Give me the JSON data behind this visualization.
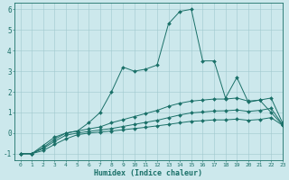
{
  "xlabel": "Humidex (Indice chaleur)",
  "bg_color": "#cce8ec",
  "grid_color": "#a0c8ce",
  "line_color": "#1a7068",
  "xlim": [
    -0.5,
    23
  ],
  "ylim": [
    -1.3,
    6.3
  ],
  "xtick_labels": [
    "0",
    "1",
    "2",
    "3",
    "4",
    "5",
    "6",
    "7",
    "8",
    "9",
    "10",
    "11",
    "12",
    "13",
    "14",
    "15",
    "16",
    "17",
    "18",
    "19",
    "20",
    "21",
    "22",
    "23"
  ],
  "xtick_pos": [
    0,
    1,
    2,
    3,
    4,
    5,
    6,
    7,
    8,
    9,
    10,
    11,
    12,
    13,
    14,
    15,
    16,
    17,
    18,
    19,
    20,
    21,
    22,
    23
  ],
  "yticks": [
    -1,
    0,
    1,
    2,
    3,
    4,
    5,
    6
  ],
  "series": [
    {
      "x": [
        0,
        1,
        2,
        3,
        4,
        5,
        6,
        7,
        8,
        9,
        10,
        11,
        12,
        13,
        14,
        15,
        16,
        17,
        18,
        19,
        20,
        21,
        22,
        23
      ],
      "y": [
        -1,
        -1,
        -0.7,
        -0.3,
        0.0,
        0.1,
        0.5,
        1.0,
        2.0,
        3.2,
        3.0,
        3.1,
        3.3,
        5.3,
        5.9,
        6.0,
        3.5,
        3.5,
        1.7,
        2.7,
        1.5,
        1.6,
        1.0,
        0.4
      ]
    },
    {
      "x": [
        0,
        1,
        2,
        3,
        4,
        5,
        6,
        7,
        8,
        9,
        10,
        11,
        12,
        13,
        14,
        15,
        16,
        17,
        18,
        19,
        20,
        21,
        22,
        23
      ],
      "y": [
        -1,
        -1,
        -0.6,
        -0.2,
        0.0,
        0.1,
        0.2,
        0.3,
        0.5,
        0.65,
        0.8,
        0.95,
        1.1,
        1.3,
        1.45,
        1.55,
        1.6,
        1.65,
        1.65,
        1.7,
        1.55,
        1.6,
        1.7,
        0.5
      ]
    },
    {
      "x": [
        0,
        1,
        2,
        3,
        4,
        5,
        6,
        7,
        8,
        9,
        10,
        11,
        12,
        13,
        14,
        15,
        16,
        17,
        18,
        19,
        20,
        21,
        22,
        23
      ],
      "y": [
        -1,
        -1,
        -0.75,
        -0.4,
        -0.1,
        0.0,
        0.08,
        0.15,
        0.22,
        0.32,
        0.42,
        0.52,
        0.62,
        0.75,
        0.88,
        0.98,
        1.02,
        1.07,
        1.08,
        1.12,
        1.05,
        1.1,
        1.2,
        0.42
      ]
    },
    {
      "x": [
        0,
        1,
        2,
        3,
        4,
        5,
        6,
        7,
        8,
        9,
        10,
        11,
        12,
        13,
        14,
        15,
        16,
        17,
        18,
        19,
        20,
        21,
        22,
        23
      ],
      "y": [
        -1,
        -1,
        -0.85,
        -0.55,
        -0.28,
        -0.08,
        0.0,
        0.05,
        0.1,
        0.16,
        0.22,
        0.28,
        0.35,
        0.42,
        0.5,
        0.57,
        0.6,
        0.64,
        0.64,
        0.68,
        0.62,
        0.66,
        0.75,
        0.38
      ]
    }
  ]
}
